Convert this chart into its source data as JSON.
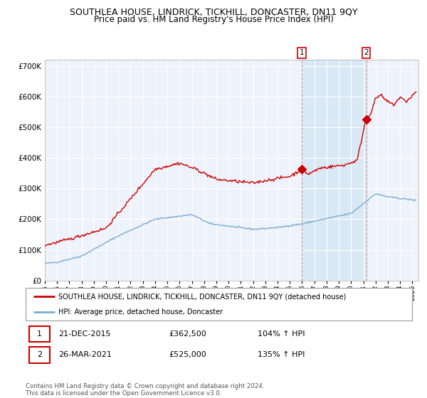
{
  "title": "SOUTHLEA HOUSE, LINDRICK, TICKHILL, DONCASTER, DN11 9QY",
  "subtitle": "Price paid vs. HM Land Registry's House Price Index (HPI)",
  "ylim": [
    0,
    720000
  ],
  "yticks": [
    0,
    100000,
    200000,
    300000,
    400000,
    500000,
    600000,
    700000
  ],
  "ytick_labels": [
    "£0",
    "£100K",
    "£200K",
    "£300K",
    "£400K",
    "£500K",
    "£600K",
    "£700K"
  ],
  "xlim_start": 1995.0,
  "xlim_end": 2025.5,
  "sale1_date": 2015.97,
  "sale1_price": 362500,
  "sale2_date": 2021.23,
  "sale2_price": 525000,
  "legend_line1": "SOUTHLEA HOUSE, LINDRICK, TICKHILL, DONCASTER, DN11 9QY (detached house)",
  "legend_line2": "HPI: Average price, detached house, Doncaster",
  "footer": "Contains HM Land Registry data © Crown copyright and database right 2024.\nThis data is licensed under the Open Government Licence v3.0.",
  "house_color": "#cc0000",
  "hpi_color": "#7aadd4",
  "background_color": "#eef2fa",
  "shade_color": "#d8e8f5",
  "grid_color": "#ffffff",
  "title_fontsize": 9,
  "subtitle_fontsize": 8.5
}
